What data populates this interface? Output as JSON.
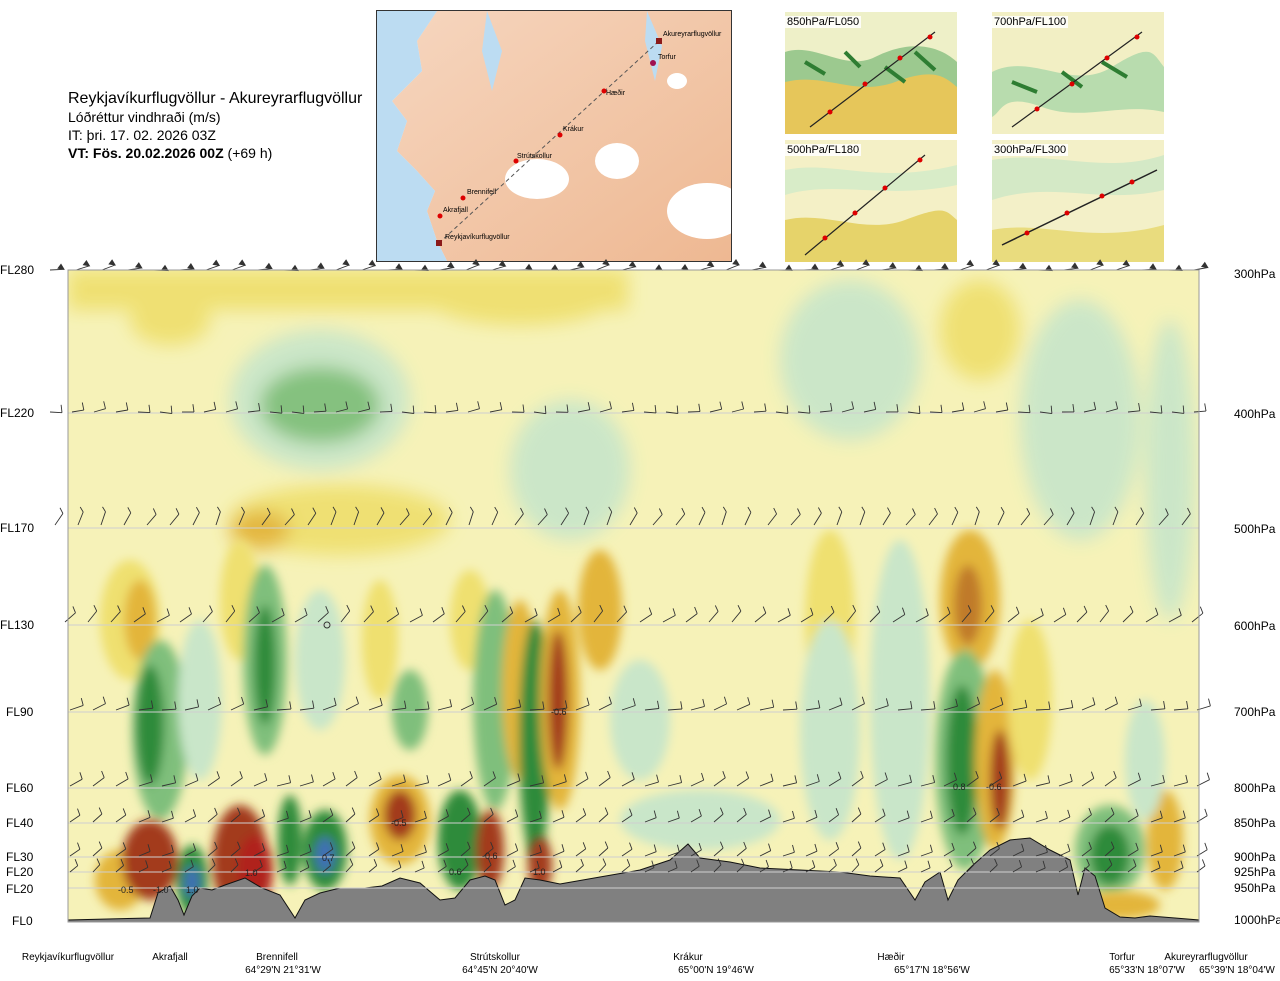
{
  "header": {
    "route": "Reykjavíkurflugvöllur - Akureyrarflugvöllur",
    "variable": "Lóðréttur vindhraði (m/s)",
    "issue_time": "IT: þri. 17. 02. 2026 03Z",
    "valid_time_prefix": "VT: Fös. 20.02.2026 00Z",
    "valid_time_suffix": "(+69 h)"
  },
  "map": {
    "waypoints": [
      "Akureyrarflugvöllur",
      "Torfur",
      "Hæðir",
      "Krákur",
      "Strútskollur",
      "Brennifell",
      "Akrafjall",
      "Reykjavíkurflugvöllur"
    ]
  },
  "thumbnails": [
    {
      "label": "850hPa/FL050"
    },
    {
      "label": "700hPa/FL100"
    },
    {
      "label": "500hPa/FL180"
    },
    {
      "label": "300hPa/FL300"
    }
  ],
  "chart_data": {
    "type": "heatmap",
    "title": "Lóðréttur vindhraði (m/s)",
    "left_axis_labels": [
      "FL280",
      "FL220",
      "FL170",
      "FL130",
      "FL90",
      "FL60",
      "FL40",
      "FL30",
      "FL20",
      "FL20",
      "FL0"
    ],
    "right_axis_labels": [
      "300hPa",
      "400hPa",
      "500hPa",
      "600hPa",
      "700hPa",
      "800hPa",
      "850hPa",
      "900hPa",
      "925hPa",
      "950hPa",
      "1000hPa"
    ],
    "pressure_levels_hPa": [
      300,
      400,
      500,
      600,
      700,
      800,
      850,
      900,
      925,
      950,
      1000
    ],
    "x_points": [
      {
        "name": "Reykjavíkurflugvöllur",
        "coord": ""
      },
      {
        "name": "Akrafjall",
        "coord": ""
      },
      {
        "name": "Brennifell",
        "coord": "64°29'N 21°31'W"
      },
      {
        "name": "Strútskollur",
        "coord": "64°45'N 20°40'W"
      },
      {
        "name": "Krákur",
        "coord": "65°00'N 19°46'W"
      },
      {
        "name": "Hæðir",
        "coord": "65°17'N 18°56'W"
      },
      {
        "name": "Torfur",
        "coord": "65°33'N 18°07'W"
      },
      {
        "name": "Akureyrarflugvöllur",
        "coord": "65°39'N 18°04'W"
      }
    ],
    "annotations": [
      "-0.5",
      "-1.0",
      "1.0",
      "1.0",
      "0.7",
      "-0.5",
      "-0.6",
      "0.6",
      "1.0",
      "-0.6",
      "0.8",
      "-0.6"
    ],
    "colors": {
      "strong_up": "#2e8b3a",
      "up": "#7fbf7b",
      "weak_up": "#c9e6c9",
      "neutral": "#f6f2b8",
      "weak_down": "#efe070",
      "down": "#e3b53a",
      "strong_down": "#a33a1f",
      "peak_up": "#3f6fb5",
      "terrain": "#808080"
    }
  }
}
